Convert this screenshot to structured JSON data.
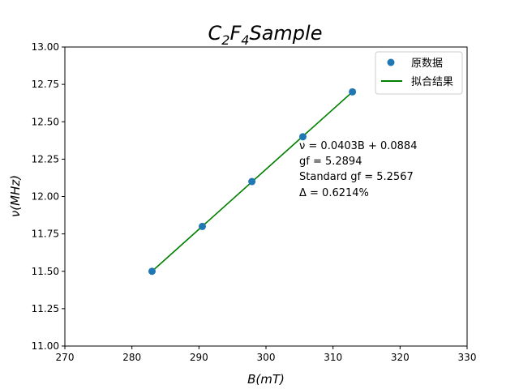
{
  "chart_data": {
    "type": "scatter",
    "title_main": "C",
    "title_sub1": "2",
    "title_mid": "F",
    "title_sub2": "4",
    "title_tail": "Sample",
    "xlabel": "B(mT)",
    "ylabel": "ν(MHz)",
    "xlim": [
      270,
      330
    ],
    "ylim": [
      11.0,
      13.0
    ],
    "xticks": [
      "270",
      "280",
      "290",
      "300",
      "310",
      "320",
      "330"
    ],
    "yticks": [
      "11.00",
      "11.25",
      "11.50",
      "11.75",
      "12.00",
      "12.25",
      "12.50",
      "12.75",
      "13.00"
    ],
    "series": [
      {
        "name": "原数据",
        "kind": "scatter",
        "color": "#1f77b4",
        "x": [
          283.0,
          290.5,
          297.9,
          305.5,
          312.9
        ],
        "y": [
          11.5,
          11.8,
          12.1,
          12.4,
          12.7
        ]
      },
      {
        "name": "拟合结果",
        "kind": "line",
        "color": "#008000",
        "x": [
          283.0,
          312.9
        ],
        "y": [
          11.5,
          12.7
        ]
      }
    ],
    "legend_position": "upper right",
    "grid": false,
    "annotations": [
      "ν = 0.0403B + 0.0884",
      "gf = 5.2894",
      "Standard gf = 5.2567",
      "Δ = 0.6214%"
    ]
  }
}
